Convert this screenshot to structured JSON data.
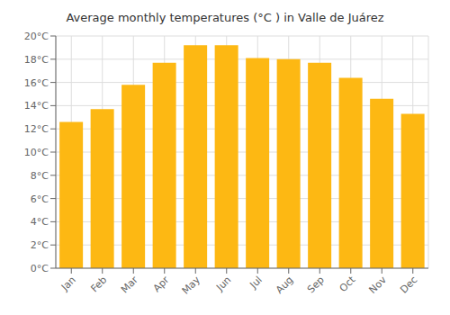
{
  "chart_data": {
    "type": "bar",
    "title": "Average monthly temperatures (°C ) in Valle de Juárez",
    "categories": [
      "Jan",
      "Feb",
      "Mar",
      "Apr",
      "May",
      "Jun",
      "Jul",
      "Aug",
      "Sep",
      "Oct",
      "Nov",
      "Dec"
    ],
    "values": [
      12.6,
      13.7,
      15.8,
      17.7,
      19.2,
      19.2,
      18.1,
      18.0,
      17.7,
      16.4,
      14.6,
      13.3
    ],
    "color": "#FDB813",
    "ylim": [
      0,
      20
    ],
    "yticks": [
      {
        "value": 0,
        "label": "0°C"
      },
      {
        "value": 2,
        "label": "2°C"
      },
      {
        "value": 4,
        "label": "4°C"
      },
      {
        "value": 6,
        "label": "6°C"
      },
      {
        "value": 8,
        "label": "8°C"
      },
      {
        "value": 10,
        "label": "10°C"
      },
      {
        "value": 12,
        "label": "12°C"
      },
      {
        "value": 14,
        "label": "14°C"
      },
      {
        "value": 16,
        "label": "16°C"
      },
      {
        "value": 18,
        "label": "18°C"
      },
      {
        "value": 20,
        "label": "20°C"
      }
    ],
    "grid": true
  }
}
